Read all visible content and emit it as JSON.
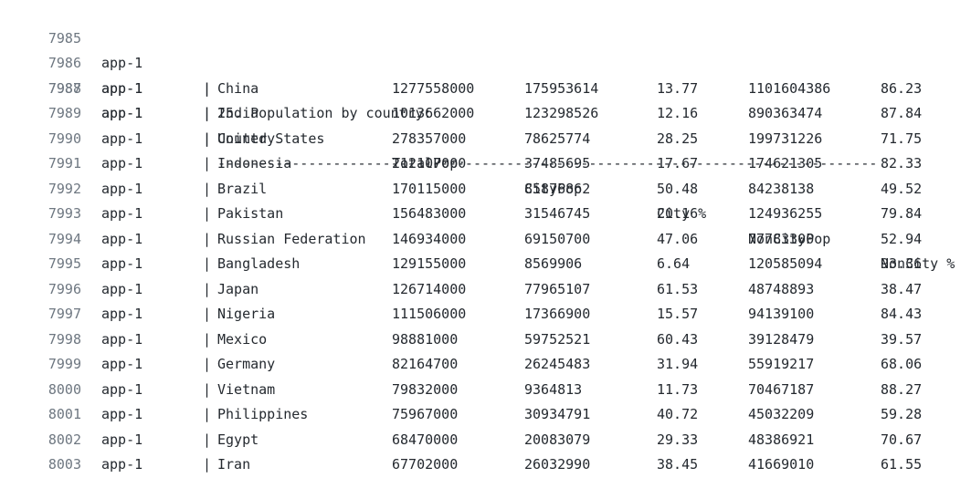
{
  "log": {
    "header_line": {
      "num": "7985",
      "source": "app-1",
      "text": "25. Population by country:"
    },
    "columns_line": {
      "num": "7986",
      "source": "app-1"
    },
    "divider_line": {
      "num": "7987",
      "source": "app-1",
      "text": "--------------------------------------------------------------------------------"
    },
    "separator": "|",
    "columns": [
      "Country",
      "TotalPop",
      "CityPop",
      "City %",
      "NonCityPop",
      "NonCity %"
    ],
    "rows": [
      {
        "num": "7988",
        "source": "app-1",
        "cells": [
          "China",
          "1277558000",
          "175953614",
          "13.77",
          "1101604386",
          "86.23"
        ]
      },
      {
        "num": "7989",
        "source": "app-1",
        "cells": [
          "India",
          "1013662000",
          "123298526",
          "12.16",
          "890363474",
          "87.84"
        ]
      },
      {
        "num": "7990",
        "source": "app-1",
        "cells": [
          "United States",
          "278357000",
          "78625774",
          "28.25",
          "199731226",
          "71.75"
        ]
      },
      {
        "num": "7991",
        "source": "app-1",
        "cells": [
          "Indonesia",
          "212107000",
          "37485695",
          "17.67",
          "174621305",
          "82.33"
        ]
      },
      {
        "num": "7992",
        "source": "app-1",
        "cells": [
          "Brazil",
          "170115000",
          "85876862",
          "50.48",
          "84238138",
          "49.52"
        ]
      },
      {
        "num": "7993",
        "source": "app-1",
        "cells": [
          "Pakistan",
          "156483000",
          "31546745",
          "20.16",
          "124936255",
          "79.84"
        ]
      },
      {
        "num": "7994",
        "source": "app-1",
        "cells": [
          "Russian Federation",
          "146934000",
          "69150700",
          "47.06",
          "77783300",
          "52.94"
        ]
      },
      {
        "num": "7995",
        "source": "app-1",
        "cells": [
          "Bangladesh",
          "129155000",
          "8569906",
          "6.64",
          "120585094",
          "93.36"
        ]
      },
      {
        "num": "7996",
        "source": "app-1",
        "cells": [
          "Japan",
          "126714000",
          "77965107",
          "61.53",
          "48748893",
          "38.47"
        ]
      },
      {
        "num": "7997",
        "source": "app-1",
        "cells": [
          "Nigeria",
          "111506000",
          "17366900",
          "15.57",
          "94139100",
          "84.43"
        ]
      },
      {
        "num": "7998",
        "source": "app-1",
        "cells": [
          "Mexico",
          "98881000",
          "59752521",
          "60.43",
          "39128479",
          "39.57"
        ]
      },
      {
        "num": "7999",
        "source": "app-1",
        "cells": [
          "Germany",
          "82164700",
          "26245483",
          "31.94",
          "55919217",
          "68.06"
        ]
      },
      {
        "num": "8000",
        "source": "app-1",
        "cells": [
          "Vietnam",
          "79832000",
          "9364813",
          "11.73",
          "70467187",
          "88.27"
        ]
      },
      {
        "num": "8001",
        "source": "app-1",
        "cells": [
          "Philippines",
          "75967000",
          "30934791",
          "40.72",
          "45032209",
          "59.28"
        ]
      },
      {
        "num": "8002",
        "source": "app-1",
        "cells": [
          "Egypt",
          "68470000",
          "20083079",
          "29.33",
          "48386921",
          "70.67"
        ]
      },
      {
        "num": "8003",
        "source": "app-1",
        "cells": [
          "Iran",
          "67702000",
          "26032990",
          "38.45",
          "41669010",
          "61.55"
        ]
      }
    ]
  }
}
